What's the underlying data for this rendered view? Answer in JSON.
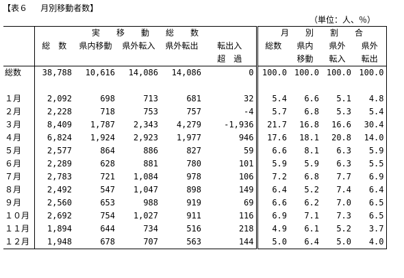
{
  "title": "【表６　 月別移動者数】",
  "unit": "（単位：人、％）",
  "header": {
    "group_moves": "実　　移　　動　　総　　数",
    "group_ratio": "月　　別　　割　　合",
    "cols": [
      {
        "l1": "総　数",
        "l2": ""
      },
      {
        "l1": "県内移動",
        "l2": ""
      },
      {
        "l1": "県外転入",
        "l2": ""
      },
      {
        "l1": "県外転出",
        "l2": ""
      },
      {
        "l1": "転出入",
        "l2": "超　過"
      },
      {
        "l1": "総数",
        "l2": ""
      },
      {
        "l1": "県内",
        "l2": "移動"
      },
      {
        "l1": "県外",
        "l2": "転入"
      },
      {
        "l1": "県外",
        "l2": "転出"
      }
    ]
  },
  "total_row": {
    "label": "総数",
    "values": [
      "38,788",
      "10,616",
      "14,086",
      "14,086",
      "0",
      "100.0",
      "100.0",
      "100.0",
      "100.0"
    ]
  },
  "rows": [
    {
      "label": "１月",
      "values": [
        "2,092",
        "698",
        "713",
        "681",
        "32",
        "5.4",
        "6.6",
        "5.1",
        "4.8"
      ]
    },
    {
      "label": "２月",
      "values": [
        "2,228",
        "718",
        "753",
        "757",
        "-4",
        "5.7",
        "6.8",
        "5.3",
        "5.4"
      ]
    },
    {
      "label": "３月",
      "values": [
        "8,409",
        "1,787",
        "2,343",
        "4,279",
        "-1,936",
        "21.7",
        "16.8",
        "16.6",
        "30.4"
      ]
    },
    {
      "label": "４月",
      "values": [
        "6,824",
        "1,924",
        "2,923",
        "1,977",
        "946",
        "17.6",
        "18.1",
        "20.8",
        "14.0"
      ]
    },
    {
      "label": "５月",
      "values": [
        "2,577",
        "864",
        "886",
        "827",
        "59",
        "6.6",
        "8.1",
        "6.3",
        "5.9"
      ]
    },
    {
      "label": "６月",
      "values": [
        "2,289",
        "628",
        "881",
        "780",
        "101",
        "5.9",
        "5.9",
        "6.3",
        "5.5"
      ]
    },
    {
      "label": "７月",
      "values": [
        "2,783",
        "721",
        "1,084",
        "978",
        "106",
        "7.2",
        "6.8",
        "7.7",
        "6.9"
      ]
    },
    {
      "label": "８月",
      "values": [
        "2,492",
        "547",
        "1,047",
        "898",
        "149",
        "6.4",
        "5.2",
        "7.4",
        "6.4"
      ]
    },
    {
      "label": "９月",
      "values": [
        "2,560",
        "653",
        "988",
        "919",
        "69",
        "6.6",
        "6.2",
        "7.0",
        "6.5"
      ]
    },
    {
      "label": "１０月",
      "values": [
        "2,692",
        "754",
        "1,027",
        "911",
        "116",
        "6.9",
        "7.1",
        "7.3",
        "6.5"
      ]
    },
    {
      "label": "１１月",
      "values": [
        "1,894",
        "644",
        "734",
        "516",
        "218",
        "4.9",
        "6.1",
        "5.2",
        "3.7"
      ]
    },
    {
      "label": "１２月",
      "values": [
        "1,948",
        "678",
        "707",
        "563",
        "144",
        "5.0",
        "6.4",
        "5.0",
        "4.0"
      ]
    }
  ]
}
